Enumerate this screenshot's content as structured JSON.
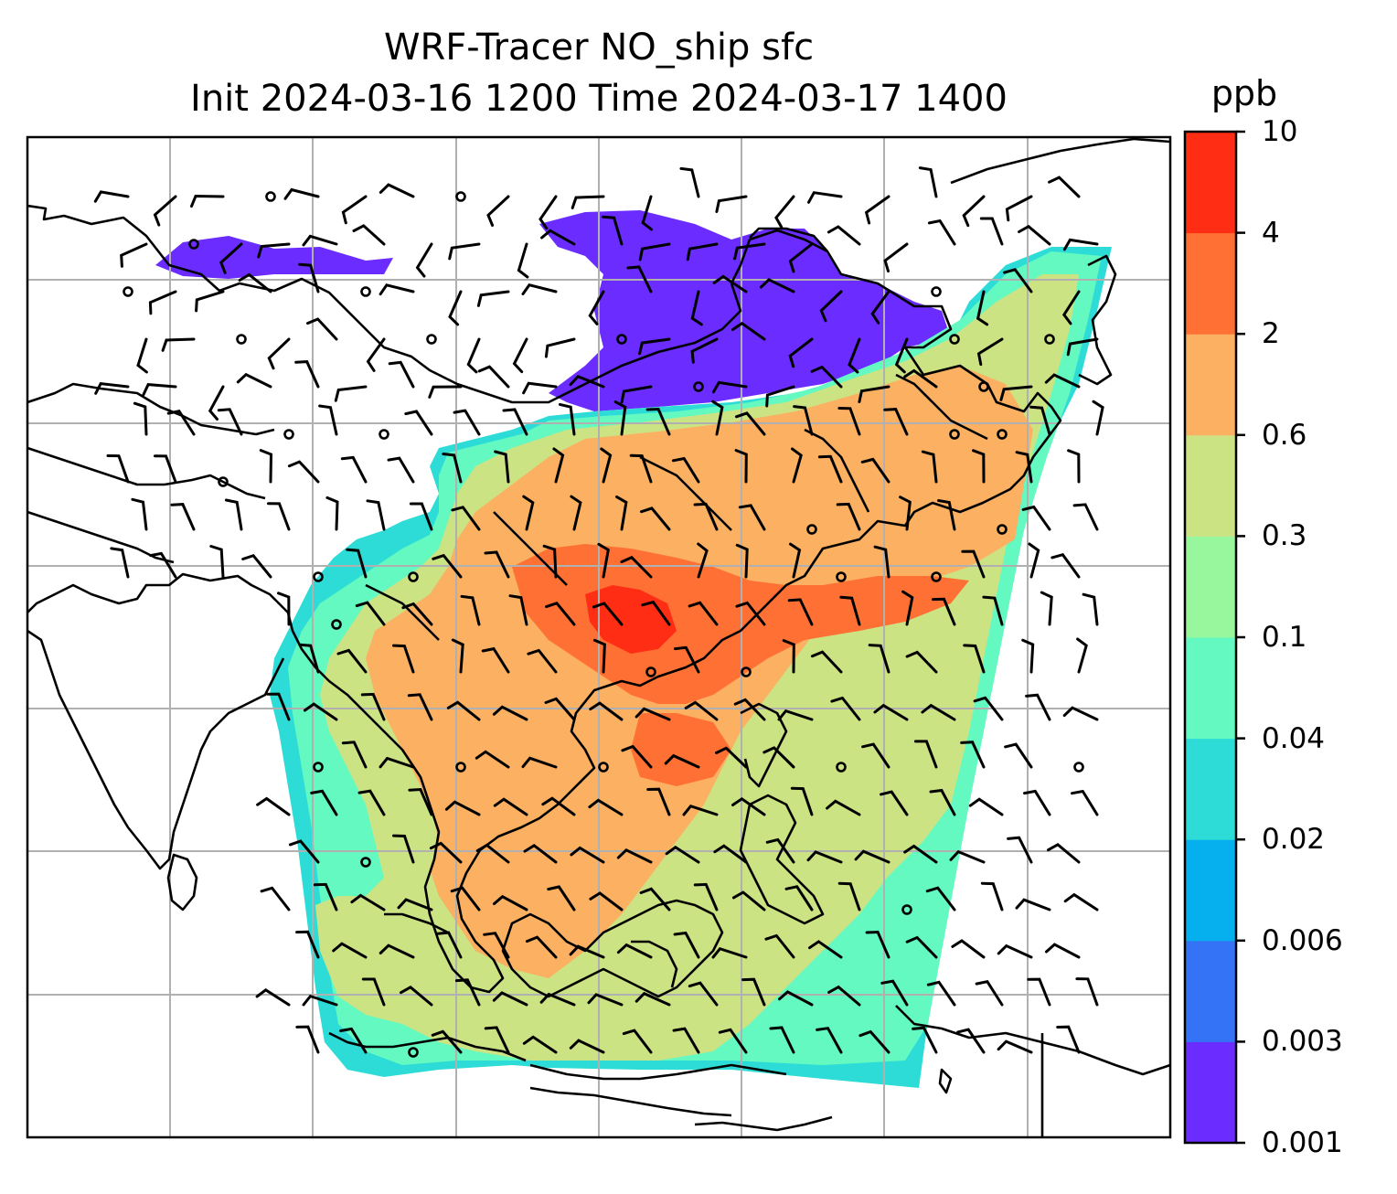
{
  "title": {
    "line1": "WRF-Tracer NO_ship sfc",
    "line2": "Init 2024-03-16 1200 Time 2024-03-17 1400"
  },
  "colorbar": {
    "unit": "ppb",
    "ticks": [
      "0.001",
      "0.003",
      "0.006",
      "0.02",
      "0.04",
      "0.1",
      "0.3",
      "0.6",
      "2",
      "4",
      "10"
    ],
    "colors": [
      "#6a2cff",
      "#3473f5",
      "#06b0ee",
      "#2ddcd6",
      "#63f9c0",
      "#98f79c",
      "#cce384",
      "#fbb062",
      "#ff7034",
      "#ff2d14"
    ]
  },
  "map": {
    "field": "NO_ship",
    "level": "sfc",
    "gridlines": true,
    "coastlines": true,
    "wind_barbs": true
  }
}
